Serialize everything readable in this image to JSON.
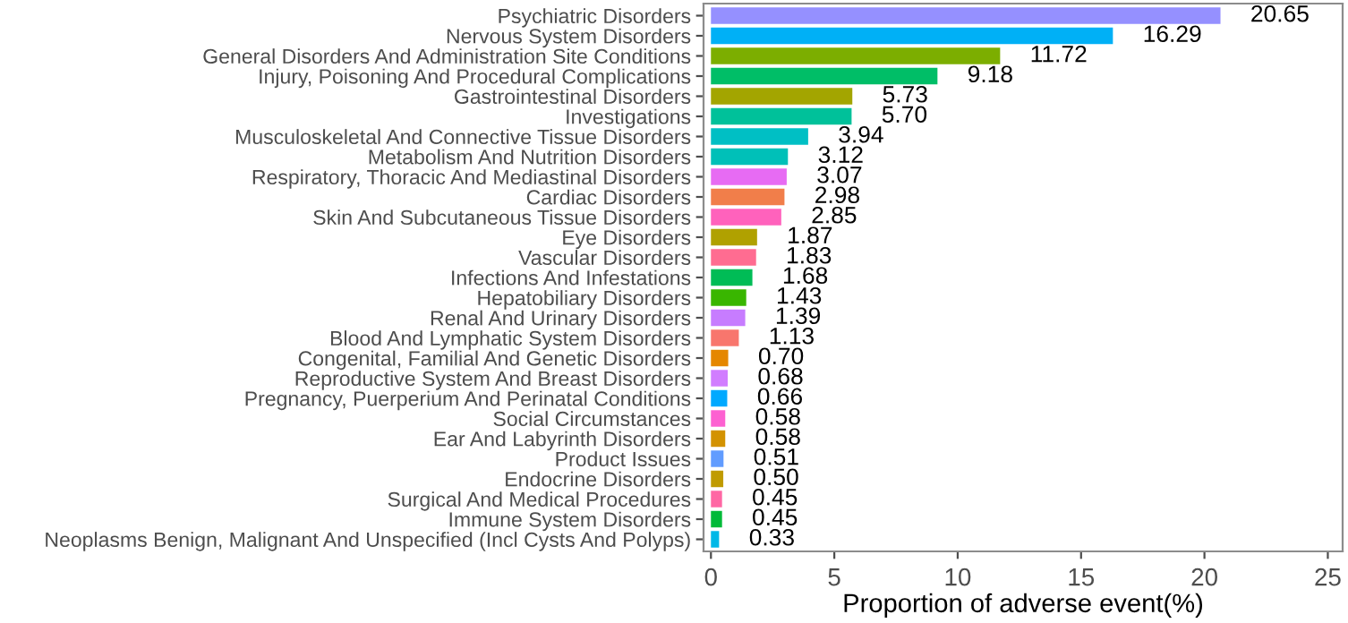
{
  "chart_data": {
    "type": "bar",
    "orientation": "horizontal",
    "xlabel": "Proportion of adverse event(%)",
    "categories": [
      "Psychiatric Disorders",
      "Nervous System Disorders",
      "General Disorders And Administration Site Conditions",
      "Injury, Poisoning And Procedural Complications",
      "Gastrointestinal Disorders",
      "Investigations",
      "Musculoskeletal And Connective Tissue Disorders",
      "Metabolism And Nutrition Disorders",
      "Respiratory, Thoracic And Mediastinal Disorders",
      "Cardiac Disorders",
      "Skin And Subcutaneous Tissue Disorders",
      "Eye Disorders",
      "Vascular Disorders",
      "Infections And Infestations",
      "Hepatobiliary Disorders",
      "Renal And Urinary Disorders",
      "Blood And Lymphatic System Disorders",
      "Congenital, Familial And Genetic Disorders",
      "Reproductive System And Breast Disorders",
      "Pregnancy, Puerperium And Perinatal Conditions",
      "Social Circumstances",
      "Ear And Labyrinth Disorders",
      "Product Issues",
      "Endocrine Disorders",
      "Surgical And Medical Procedures",
      "Immune System Disorders",
      "Neoplasms Benign, Malignant And Unspecified (Incl Cysts And Polyps)"
    ],
    "values": [
      20.65,
      16.29,
      11.72,
      9.18,
      5.73,
      5.7,
      3.94,
      3.12,
      3.07,
      2.98,
      2.85,
      1.87,
      1.83,
      1.68,
      1.43,
      1.39,
      1.13,
      0.7,
      0.68,
      0.66,
      0.58,
      0.58,
      0.51,
      0.5,
      0.45,
      0.45,
      0.33
    ],
    "value_labels": [
      "20.65",
      "16.29",
      "11.72",
      "9.18",
      "5.73",
      "5.70",
      "3.94",
      "3.12",
      "3.07",
      "2.98",
      "2.85",
      "1.87",
      "1.83",
      "1.68",
      "1.43",
      "1.39",
      "1.13",
      "0.70",
      "0.68",
      "0.66",
      "0.58",
      "0.58",
      "0.51",
      "0.50",
      "0.45",
      "0.45",
      "0.33"
    ],
    "colors": [
      "#9590ff",
      "#00b0f6",
      "#7cae00",
      "#00be67",
      "#a3a500",
      "#00c19a",
      "#00bfc4",
      "#00c0b8",
      "#e76bf3",
      "#f17e4a",
      "#ff62bc",
      "#b0a100",
      "#ff6c91",
      "#00bc56",
      "#39b600",
      "#c77cff",
      "#f8766d",
      "#e58700",
      "#d17dff",
      "#00a9ff",
      "#fd61d1",
      "#d39200",
      "#619cff",
      "#c09b00",
      "#ff67a4",
      "#00ba38",
      "#00b8e7"
    ],
    "xlim": [
      -0.3,
      25.6
    ],
    "xticks": [
      0,
      5,
      10,
      15,
      20,
      25
    ],
    "grid": false
  }
}
